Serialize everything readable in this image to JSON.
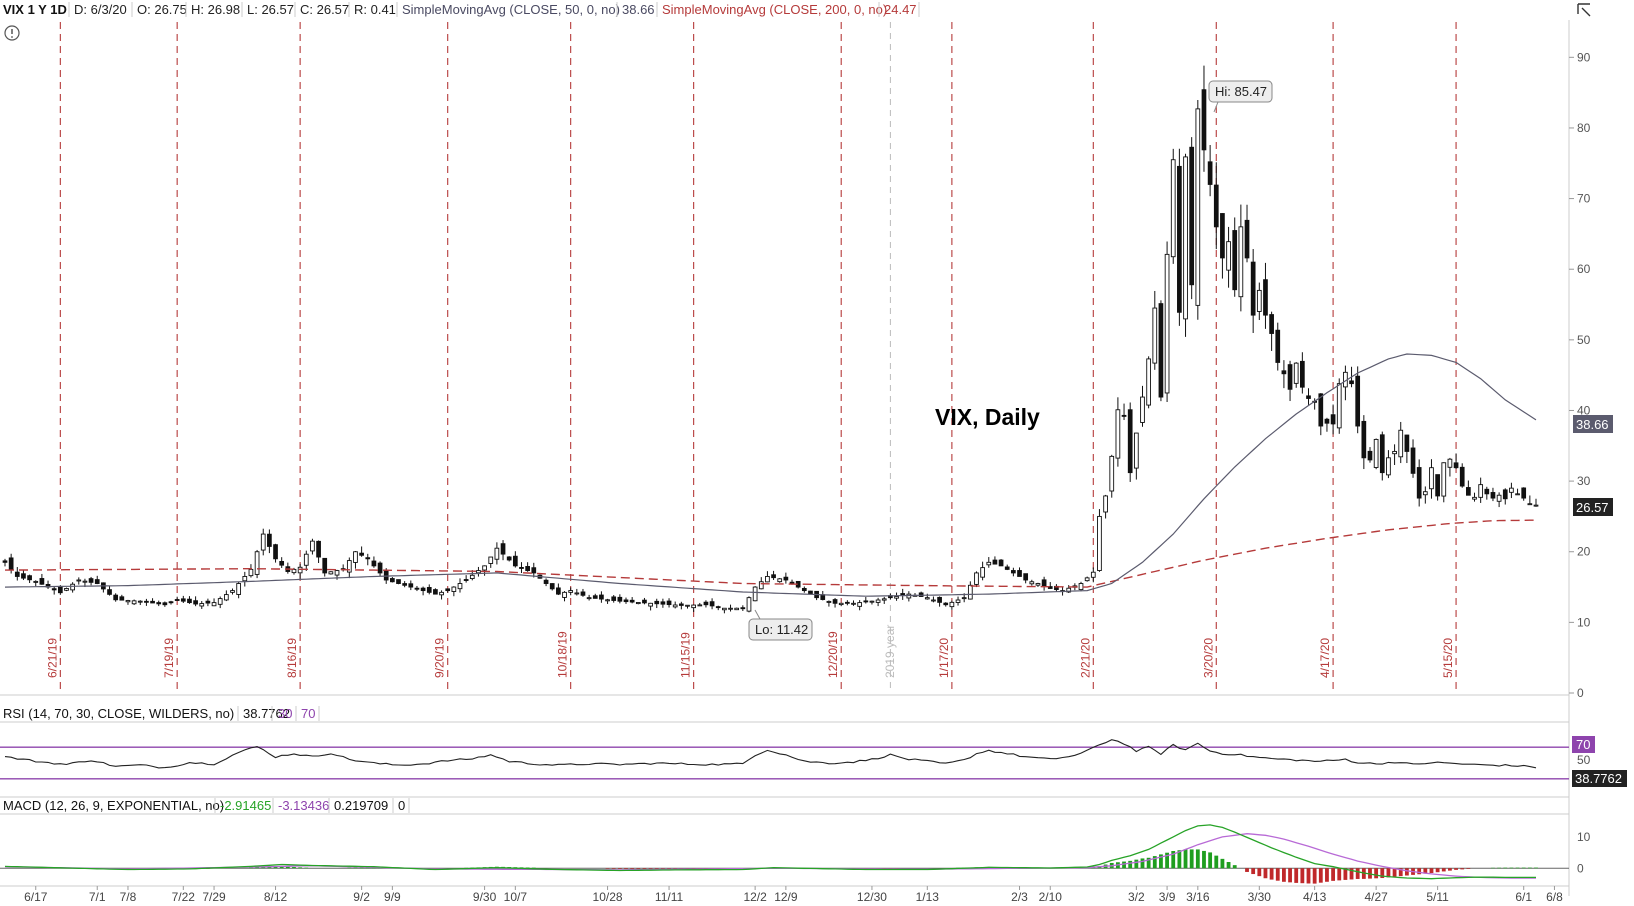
{
  "header": {
    "symbol": "VIX 1 Y 1D",
    "date": "D: 6/3/20",
    "open": "O: 26.75",
    "high": "H: 26.98",
    "low": "L: 26.57",
    "close": "C: 26.57",
    "range": "R: 0.41",
    "sma50_label": "SimpleMovingAvg (CLOSE, 50, 0, no)",
    "sma50_value": "38.66",
    "sma200_label": "SimpleMovingAvg (CLOSE, 200, 0, no)",
    "sma200_value": "24.47"
  },
  "annotations": {
    "title": "VIX, Daily",
    "hi": "Hi: 85.47",
    "lo": "Lo: 11.42",
    "year": "2019 year",
    "price_badge": "26.57",
    "sma_badge": "38.66"
  },
  "rsi_header": {
    "label": "RSI (14, 70, 30, CLOSE, WILDERS, no)",
    "value": "38.7762",
    "oversold": "30",
    "overbought": "70",
    "badge_70": "70",
    "badge_value": "38.7762"
  },
  "macd_header": {
    "label": "MACD (12, 26, 9, EXPONENTIAL, no)",
    "value": "-2.91465",
    "avg": "-3.13436",
    "diff": "0.219709",
    "zero": "0"
  },
  "colors": {
    "candle": "#111111",
    "sma50": "#5b5b6e",
    "sma200": "#b53a3a",
    "event_line": "#b53a3a",
    "rsi_line": "#222222",
    "rsi_bounds": "#8e44ad",
    "macd_line": "#27a327",
    "macd_signal": "#b86ad6",
    "hist_up": "#1f9e1f",
    "hist_down": "#c0282a"
  },
  "chart_data": {
    "type": "candlestick",
    "ylim": [
      0,
      95
    ],
    "y_ticks": [
      0,
      10,
      20,
      30,
      40,
      50,
      60,
      70,
      80,
      90
    ],
    "x_ticks": [
      {
        "label": "6/17",
        "i": 5
      },
      {
        "label": "7/1",
        "i": 15
      },
      {
        "label": "7/8",
        "i": 20
      },
      {
        "label": "7/22",
        "i": 29
      },
      {
        "label": "7/29",
        "i": 34
      },
      {
        "label": "8/12",
        "i": 44
      },
      {
        "label": "9/2",
        "i": 58
      },
      {
        "label": "9/9",
        "i": 63
      },
      {
        "label": "9/30",
        "i": 78
      },
      {
        "label": "10/7",
        "i": 83
      },
      {
        "label": "10/28",
        "i": 98
      },
      {
        "label": "11/11",
        "i": 108
      },
      {
        "label": "12/2",
        "i": 122
      },
      {
        "label": "12/9",
        "i": 127
      },
      {
        "label": "12/30",
        "i": 141
      },
      {
        "label": "1/13",
        "i": 150
      },
      {
        "label": "2/3",
        "i": 165
      },
      {
        "label": "2/10",
        "i": 170
      },
      {
        "label": "3/2",
        "i": 184
      },
      {
        "label": "3/9",
        "i": 189
      },
      {
        "label": "3/16",
        "i": 194
      },
      {
        "label": "3/30",
        "i": 204
      },
      {
        "label": "4/13",
        "i": 213
      },
      {
        "label": "4/27",
        "i": 223
      },
      {
        "label": "5/11",
        "i": 233
      },
      {
        "label": "6/1",
        "i": 247
      },
      {
        "label": "6/8",
        "i": 252
      }
    ],
    "event_lines": [
      {
        "label": "6/21/19",
        "i": 9
      },
      {
        "label": "7/19/19",
        "i": 28
      },
      {
        "label": "8/16/19",
        "i": 48
      },
      {
        "label": "9/20/19",
        "i": 72
      },
      {
        "label": "10/18/19",
        "i": 92
      },
      {
        "label": "11/15/19",
        "i": 112
      },
      {
        "label": "12/20/19",
        "i": 136
      },
      {
        "label": "1/17/20",
        "i": 154
      },
      {
        "label": "2/21/20",
        "i": 177
      },
      {
        "label": "3/20/20",
        "i": 197
      },
      {
        "label": "4/17/20",
        "i": 216
      },
      {
        "label": "5/15/20",
        "i": 236
      }
    ],
    "year_line_i": 144,
    "close_anchors": [
      [
        0,
        18.5
      ],
      [
        2,
        16.5
      ],
      [
        5,
        15.8
      ],
      [
        9,
        14.2
      ],
      [
        12,
        16.0
      ],
      [
        15,
        15.5
      ],
      [
        18,
        13.2
      ],
      [
        22,
        13.0
      ],
      [
        26,
        12.5
      ],
      [
        28,
        13.2
      ],
      [
        31,
        12.6
      ],
      [
        34,
        12.8
      ],
      [
        37,
        14.5
      ],
      [
        40,
        17.5
      ],
      [
        42,
        22.5
      ],
      [
        44,
        19.0
      ],
      [
        46,
        17.2
      ],
      [
        48,
        17.8
      ],
      [
        50,
        21.5
      ],
      [
        52,
        17.0
      ],
      [
        55,
        17.5
      ],
      [
        57,
        20.0
      ],
      [
        59,
        19.0
      ],
      [
        62,
        16.0
      ],
      [
        66,
        15.0
      ],
      [
        70,
        14.0
      ],
      [
        72,
        14.5
      ],
      [
        75,
        16.0
      ],
      [
        78,
        18.0
      ],
      [
        80,
        20.5
      ],
      [
        83,
        18.0
      ],
      [
        86,
        17.0
      ],
      [
        90,
        14.0
      ],
      [
        92,
        14.5
      ],
      [
        95,
        13.5
      ],
      [
        100,
        13.0
      ],
      [
        105,
        12.7
      ],
      [
        110,
        12.4
      ],
      [
        114,
        12.5
      ],
      [
        117,
        12.0
      ],
      [
        120,
        12.0
      ],
      [
        122,
        15.0
      ],
      [
        124,
        16.5
      ],
      [
        127,
        16.0
      ],
      [
        130,
        14.5
      ],
      [
        132,
        13.5
      ],
      [
        135,
        12.7
      ],
      [
        138,
        12.7
      ],
      [
        141,
        13.0
      ],
      [
        144,
        13.5
      ],
      [
        147,
        14.0
      ],
      [
        150,
        13.5
      ],
      [
        153,
        12.5
      ],
      [
        156,
        13.5
      ],
      [
        158,
        17.0
      ],
      [
        160,
        18.5
      ],
      [
        162,
        18.0
      ],
      [
        164,
        17.0
      ],
      [
        166,
        16.0
      ],
      [
        168,
        15.5
      ],
      [
        170,
        14.8
      ],
      [
        172,
        14.5
      ],
      [
        175,
        15.5
      ],
      [
        177,
        17.1
      ],
      [
        178,
        25.0
      ],
      [
        179,
        27.9
      ],
      [
        180,
        33.5
      ],
      [
        181,
        40.1
      ],
      [
        182,
        39.2
      ],
      [
        183,
        31.2
      ],
      [
        184,
        36.8
      ],
      [
        185,
        41.9
      ],
      [
        186,
        47.3
      ],
      [
        187,
        54.5
      ],
      [
        188,
        41.9
      ],
      [
        189,
        62.1
      ],
      [
        190,
        75.5
      ],
      [
        191,
        53.9
      ],
      [
        192,
        75.9
      ],
      [
        193,
        57.8
      ],
      [
        194,
        82.7
      ],
      [
        195,
        76.9
      ],
      [
        196,
        72.0
      ],
      [
        197,
        66.0
      ],
      [
        198,
        61.6
      ],
      [
        199,
        63.9
      ],
      [
        200,
        57.1
      ],
      [
        201,
        66.0
      ],
      [
        202,
        61.6
      ],
      [
        203,
        53.5
      ],
      [
        204,
        57.0
      ],
      [
        205,
        53.5
      ],
      [
        206,
        50.9
      ],
      [
        207,
        46.8
      ],
      [
        208,
        45.2
      ],
      [
        209,
        43.0
      ],
      [
        210,
        46.7
      ],
      [
        211,
        43.3
      ],
      [
        212,
        41.7
      ],
      [
        213,
        41.2
      ],
      [
        214,
        37.8
      ],
      [
        215,
        38.2
      ],
      [
        216,
        38.1
      ],
      [
        217,
        43.8
      ],
      [
        218,
        45.4
      ],
      [
        219,
        43.8
      ],
      [
        220,
        37.8
      ],
      [
        221,
        33.3
      ],
      [
        222,
        33.0
      ],
      [
        223,
        35.9
      ],
      [
        224,
        31.2
      ],
      [
        225,
        33.3
      ],
      [
        226,
        34.2
      ],
      [
        227,
        37.2
      ],
      [
        228,
        34.2
      ],
      [
        229,
        31.1
      ],
      [
        230,
        27.6
      ],
      [
        231,
        28.5
      ],
      [
        232,
        31.9
      ],
      [
        233,
        27.9
      ],
      [
        234,
        32.6
      ],
      [
        235,
        33.1
      ],
      [
        236,
        31.9
      ],
      [
        237,
        29.3
      ],
      [
        238,
        28.0
      ],
      [
        239,
        27.7
      ],
      [
        240,
        29.5
      ],
      [
        241,
        28.2
      ],
      [
        242,
        27.6
      ],
      [
        243,
        28.0
      ],
      [
        244,
        27.5
      ],
      [
        245,
        29.0
      ],
      [
        246,
        28.2
      ],
      [
        247,
        27.6
      ],
      [
        248,
        26.8
      ],
      [
        249,
        26.6
      ]
    ],
    "sma50_anchors": [
      [
        0,
        15.0
      ],
      [
        20,
        15.2
      ],
      [
        40,
        15.8
      ],
      [
        60,
        16.5
      ],
      [
        80,
        17.0
      ],
      [
        100,
        15.5
      ],
      [
        120,
        14.3
      ],
      [
        140,
        13.7
      ],
      [
        160,
        14.0
      ],
      [
        176,
        14.5
      ],
      [
        180,
        15.5
      ],
      [
        185,
        18.5
      ],
      [
        190,
        22.5
      ],
      [
        195,
        27.5
      ],
      [
        200,
        32.0
      ],
      [
        205,
        36.0
      ],
      [
        210,
        39.5
      ],
      [
        215,
        42.5
      ],
      [
        220,
        45.3
      ],
      [
        225,
        47.3
      ],
      [
        228,
        48.0
      ],
      [
        232,
        47.8
      ],
      [
        236,
        46.8
      ],
      [
        240,
        44.5
      ],
      [
        244,
        41.5
      ],
      [
        249,
        38.66
      ]
    ],
    "sma200_anchors": [
      [
        0,
        17.4
      ],
      [
        40,
        17.6
      ],
      [
        80,
        17.2
      ],
      [
        120,
        15.5
      ],
      [
        150,
        15.2
      ],
      [
        176,
        15.0
      ],
      [
        185,
        16.8
      ],
      [
        195,
        18.8
      ],
      [
        205,
        20.5
      ],
      [
        215,
        21.9
      ],
      [
        225,
        23.1
      ],
      [
        235,
        24.0
      ],
      [
        242,
        24.4
      ],
      [
        249,
        24.47
      ]
    ],
    "rsi": {
      "ylim": [
        0,
        100
      ],
      "overbought": 70,
      "oversold": 30,
      "y_tick": 50,
      "anchors": [
        [
          0,
          55
        ],
        [
          5,
          48
        ],
        [
          10,
          43
        ],
        [
          14,
          50
        ],
        [
          18,
          40
        ],
        [
          22,
          42
        ],
        [
          26,
          38
        ],
        [
          30,
          46
        ],
        [
          34,
          44
        ],
        [
          38,
          62
        ],
        [
          41,
          71
        ],
        [
          44,
          55
        ],
        [
          47,
          60
        ],
        [
          50,
          55
        ],
        [
          53,
          61
        ],
        [
          56,
          51
        ],
        [
          60,
          45
        ],
        [
          64,
          42
        ],
        [
          68,
          44
        ],
        [
          72,
          49
        ],
        [
          76,
          52
        ],
        [
          79,
          58
        ],
        [
          82,
          48
        ],
        [
          86,
          44
        ],
        [
          90,
          42
        ],
        [
          95,
          44
        ],
        [
          100,
          43
        ],
        [
          106,
          45
        ],
        [
          110,
          44
        ],
        [
          115,
          43
        ],
        [
          120,
          44
        ],
        [
          122,
          58
        ],
        [
          124,
          66
        ],
        [
          127,
          58
        ],
        [
          130,
          48
        ],
        [
          134,
          45
        ],
        [
          138,
          47
        ],
        [
          141,
          51
        ],
        [
          144,
          58
        ],
        [
          147,
          51
        ],
        [
          150,
          48
        ],
        [
          153,
          44
        ],
        [
          156,
          50
        ],
        [
          158,
          60
        ],
        [
          160,
          65
        ],
        [
          163,
          60
        ],
        [
          166,
          55
        ],
        [
          170,
          51
        ],
        [
          174,
          57
        ],
        [
          176,
          64
        ],
        [
          178,
          74
        ],
        [
          180,
          82
        ],
        [
          182,
          76
        ],
        [
          184,
          64
        ],
        [
          186,
          70
        ],
        [
          188,
          60
        ],
        [
          190,
          73
        ],
        [
          192,
          66
        ],
        [
          194,
          76
        ],
        [
          196,
          64
        ],
        [
          198,
          60
        ],
        [
          200,
          59
        ],
        [
          203,
          55
        ],
        [
          206,
          52
        ],
        [
          210,
          50
        ],
        [
          213,
          48
        ],
        [
          216,
          49
        ],
        [
          218,
          51
        ],
        [
          220,
          46
        ],
        [
          223,
          44
        ],
        [
          226,
          47
        ],
        [
          229,
          43
        ],
        [
          232,
          46
        ],
        [
          235,
          45
        ],
        [
          238,
          43
        ],
        [
          242,
          42
        ],
        [
          246,
          41
        ],
        [
          249,
          38.7762
        ]
      ]
    },
    "macd": {
      "ylim": [
        -5,
        16
      ],
      "y_ticks": [
        0,
        10
      ],
      "macd_anchors": [
        [
          0,
          0.6
        ],
        [
          10,
          0.1
        ],
        [
          20,
          -0.4
        ],
        [
          30,
          -0.2
        ],
        [
          40,
          0.6
        ],
        [
          45,
          1.2
        ],
        [
          50,
          0.9
        ],
        [
          60,
          0.5
        ],
        [
          70,
          -0.4
        ],
        [
          80,
          0.2
        ],
        [
          90,
          -0.4
        ],
        [
          100,
          -0.7
        ],
        [
          110,
          -0.5
        ],
        [
          120,
          -0.4
        ],
        [
          125,
          0.2
        ],
        [
          130,
          0.0
        ],
        [
          140,
          -0.4
        ],
        [
          150,
          -0.4
        ],
        [
          160,
          0.3
        ],
        [
          170,
          0.1
        ],
        [
          176,
          0.4
        ],
        [
          178,
          1.2
        ],
        [
          180,
          2.5
        ],
        [
          183,
          4.0
        ],
        [
          186,
          6.0
        ],
        [
          189,
          9.0
        ],
        [
          192,
          12.0
        ],
        [
          194,
          13.5
        ],
        [
          196,
          13.8
        ],
        [
          198,
          13.0
        ],
        [
          200,
          11.5
        ],
        [
          203,
          9.0
        ],
        [
          206,
          6.5
        ],
        [
          210,
          3.5
        ],
        [
          213,
          1.5
        ],
        [
          216,
          0.5
        ],
        [
          218,
          -0.3
        ],
        [
          221,
          -1.5
        ],
        [
          224,
          -2.5
        ],
        [
          228,
          -3.1
        ],
        [
          232,
          -3.3
        ],
        [
          236,
          -3.0
        ],
        [
          240,
          -2.8
        ],
        [
          244,
          -2.9
        ],
        [
          249,
          -2.91465
        ]
      ],
      "signal_anchors": [
        [
          0,
          0.5
        ],
        [
          20,
          -0.2
        ],
        [
          40,
          0.4
        ],
        [
          50,
          0.8
        ],
        [
          70,
          -0.2
        ],
        [
          100,
          -0.5
        ],
        [
          125,
          0.0
        ],
        [
          150,
          -0.3
        ],
        [
          176,
          0.2
        ],
        [
          180,
          0.8
        ],
        [
          185,
          2.2
        ],
        [
          190,
          4.5
        ],
        [
          194,
          7.5
        ],
        [
          198,
          10.0
        ],
        [
          202,
          11.0
        ],
        [
          205,
          10.5
        ],
        [
          208,
          9.3
        ],
        [
          212,
          7.0
        ],
        [
          216,
          4.5
        ],
        [
          220,
          2.3
        ],
        [
          224,
          0.6
        ],
        [
          228,
          -0.8
        ],
        [
          232,
          -1.8
        ],
        [
          236,
          -2.5
        ],
        [
          240,
          -2.9
        ],
        [
          244,
          -3.1
        ],
        [
          249,
          -3.13436
        ]
      ]
    }
  }
}
